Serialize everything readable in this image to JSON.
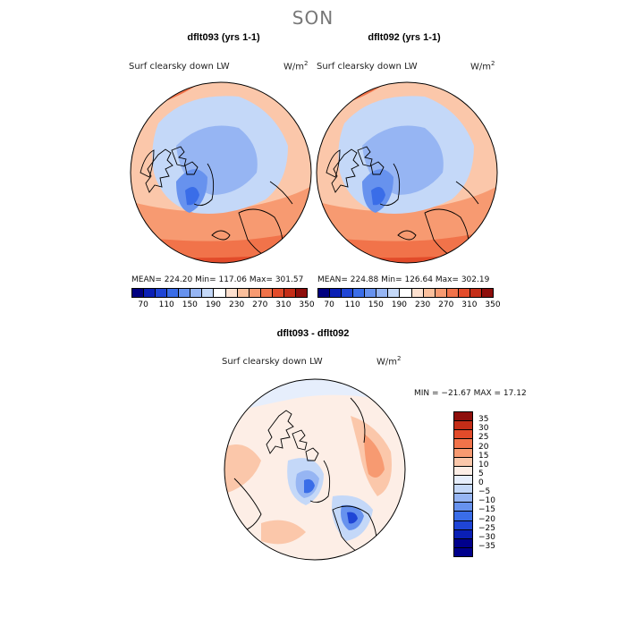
{
  "title": "SON",
  "colors": {
    "abs_scale": [
      "#000080",
      "#0a1fb5",
      "#1f45d6",
      "#3a6de8",
      "#6792ee",
      "#96b5f3",
      "#c4d8f8",
      "#ffffff",
      "#fde0cf",
      "#fbbf9c",
      "#f79a71",
      "#f1734a",
      "#e24b2a",
      "#c42d17",
      "#8e0e0b"
    ],
    "diff_scale": [
      "#00008c",
      "#0a1fb5",
      "#1f45d6",
      "#3a6de8",
      "#6792ee",
      "#96b5f3",
      "#c4d8f8",
      "#e6eefc",
      "#fdeee6",
      "#fbc7aa",
      "#f79a71",
      "#f1734a",
      "#e24b2a",
      "#c42d17",
      "#8e0e0b"
    ]
  },
  "panels": [
    {
      "title": "dflt093 (yrs 1-1)",
      "variable": "Surf clearsky down LW",
      "units": "W/m",
      "units_exp": "2",
      "stats": "MEAN= 224.20   Min= 117.06   Max= 301.57"
    },
    {
      "title": "dflt092 (yrs 1-1)",
      "variable": "Surf clearsky down LW",
      "units": "W/m",
      "units_exp": "2",
      "stats": "MEAN= 224.88   Min= 126.64   Max= 302.19"
    }
  ],
  "abs_colorbar_labels": [
    "70",
    "110",
    "150",
    "190",
    "230",
    "270",
    "310",
    "350"
  ],
  "diff_panel": {
    "title": "dflt093 - dflt092",
    "variable": "Surf clearsky down LW",
    "units": "W/m",
    "units_exp": "2",
    "stats": "MIN = −21.67  MAX =  17.12",
    "colorbar_labels": [
      "35",
      "30",
      "25",
      "20",
      "15",
      "10",
      "5",
      "0",
      "−5",
      "−10",
      "−15",
      "−20",
      "−25",
      "−30",
      "−35"
    ]
  },
  "chart_data": {
    "type": "heatmap",
    "projection": "north polar stereographic",
    "season": "SON",
    "field": "Surf clearsky down LW",
    "units": "W/m^2",
    "maps": [
      {
        "name": "dflt093 (yrs 1-1)",
        "mean": 224.2,
        "min": 117.06,
        "max": 301.57,
        "contour_levels": [
          70,
          90,
          110,
          130,
          150,
          170,
          190,
          210,
          230,
          250,
          270,
          290,
          310,
          330,
          350
        ]
      },
      {
        "name": "dflt092 (yrs 1-1)",
        "mean": 224.88,
        "min": 126.64,
        "max": 302.19,
        "contour_levels": [
          70,
          90,
          110,
          130,
          150,
          170,
          190,
          210,
          230,
          250,
          270,
          290,
          310,
          330,
          350
        ]
      },
      {
        "name": "dflt093 - dflt092",
        "min": -21.67,
        "max": 17.12,
        "contour_levels": [
          -35,
          -30,
          -25,
          -20,
          -15,
          -10,
          -5,
          0,
          5,
          10,
          15,
          20,
          25,
          30,
          35
        ]
      }
    ]
  }
}
